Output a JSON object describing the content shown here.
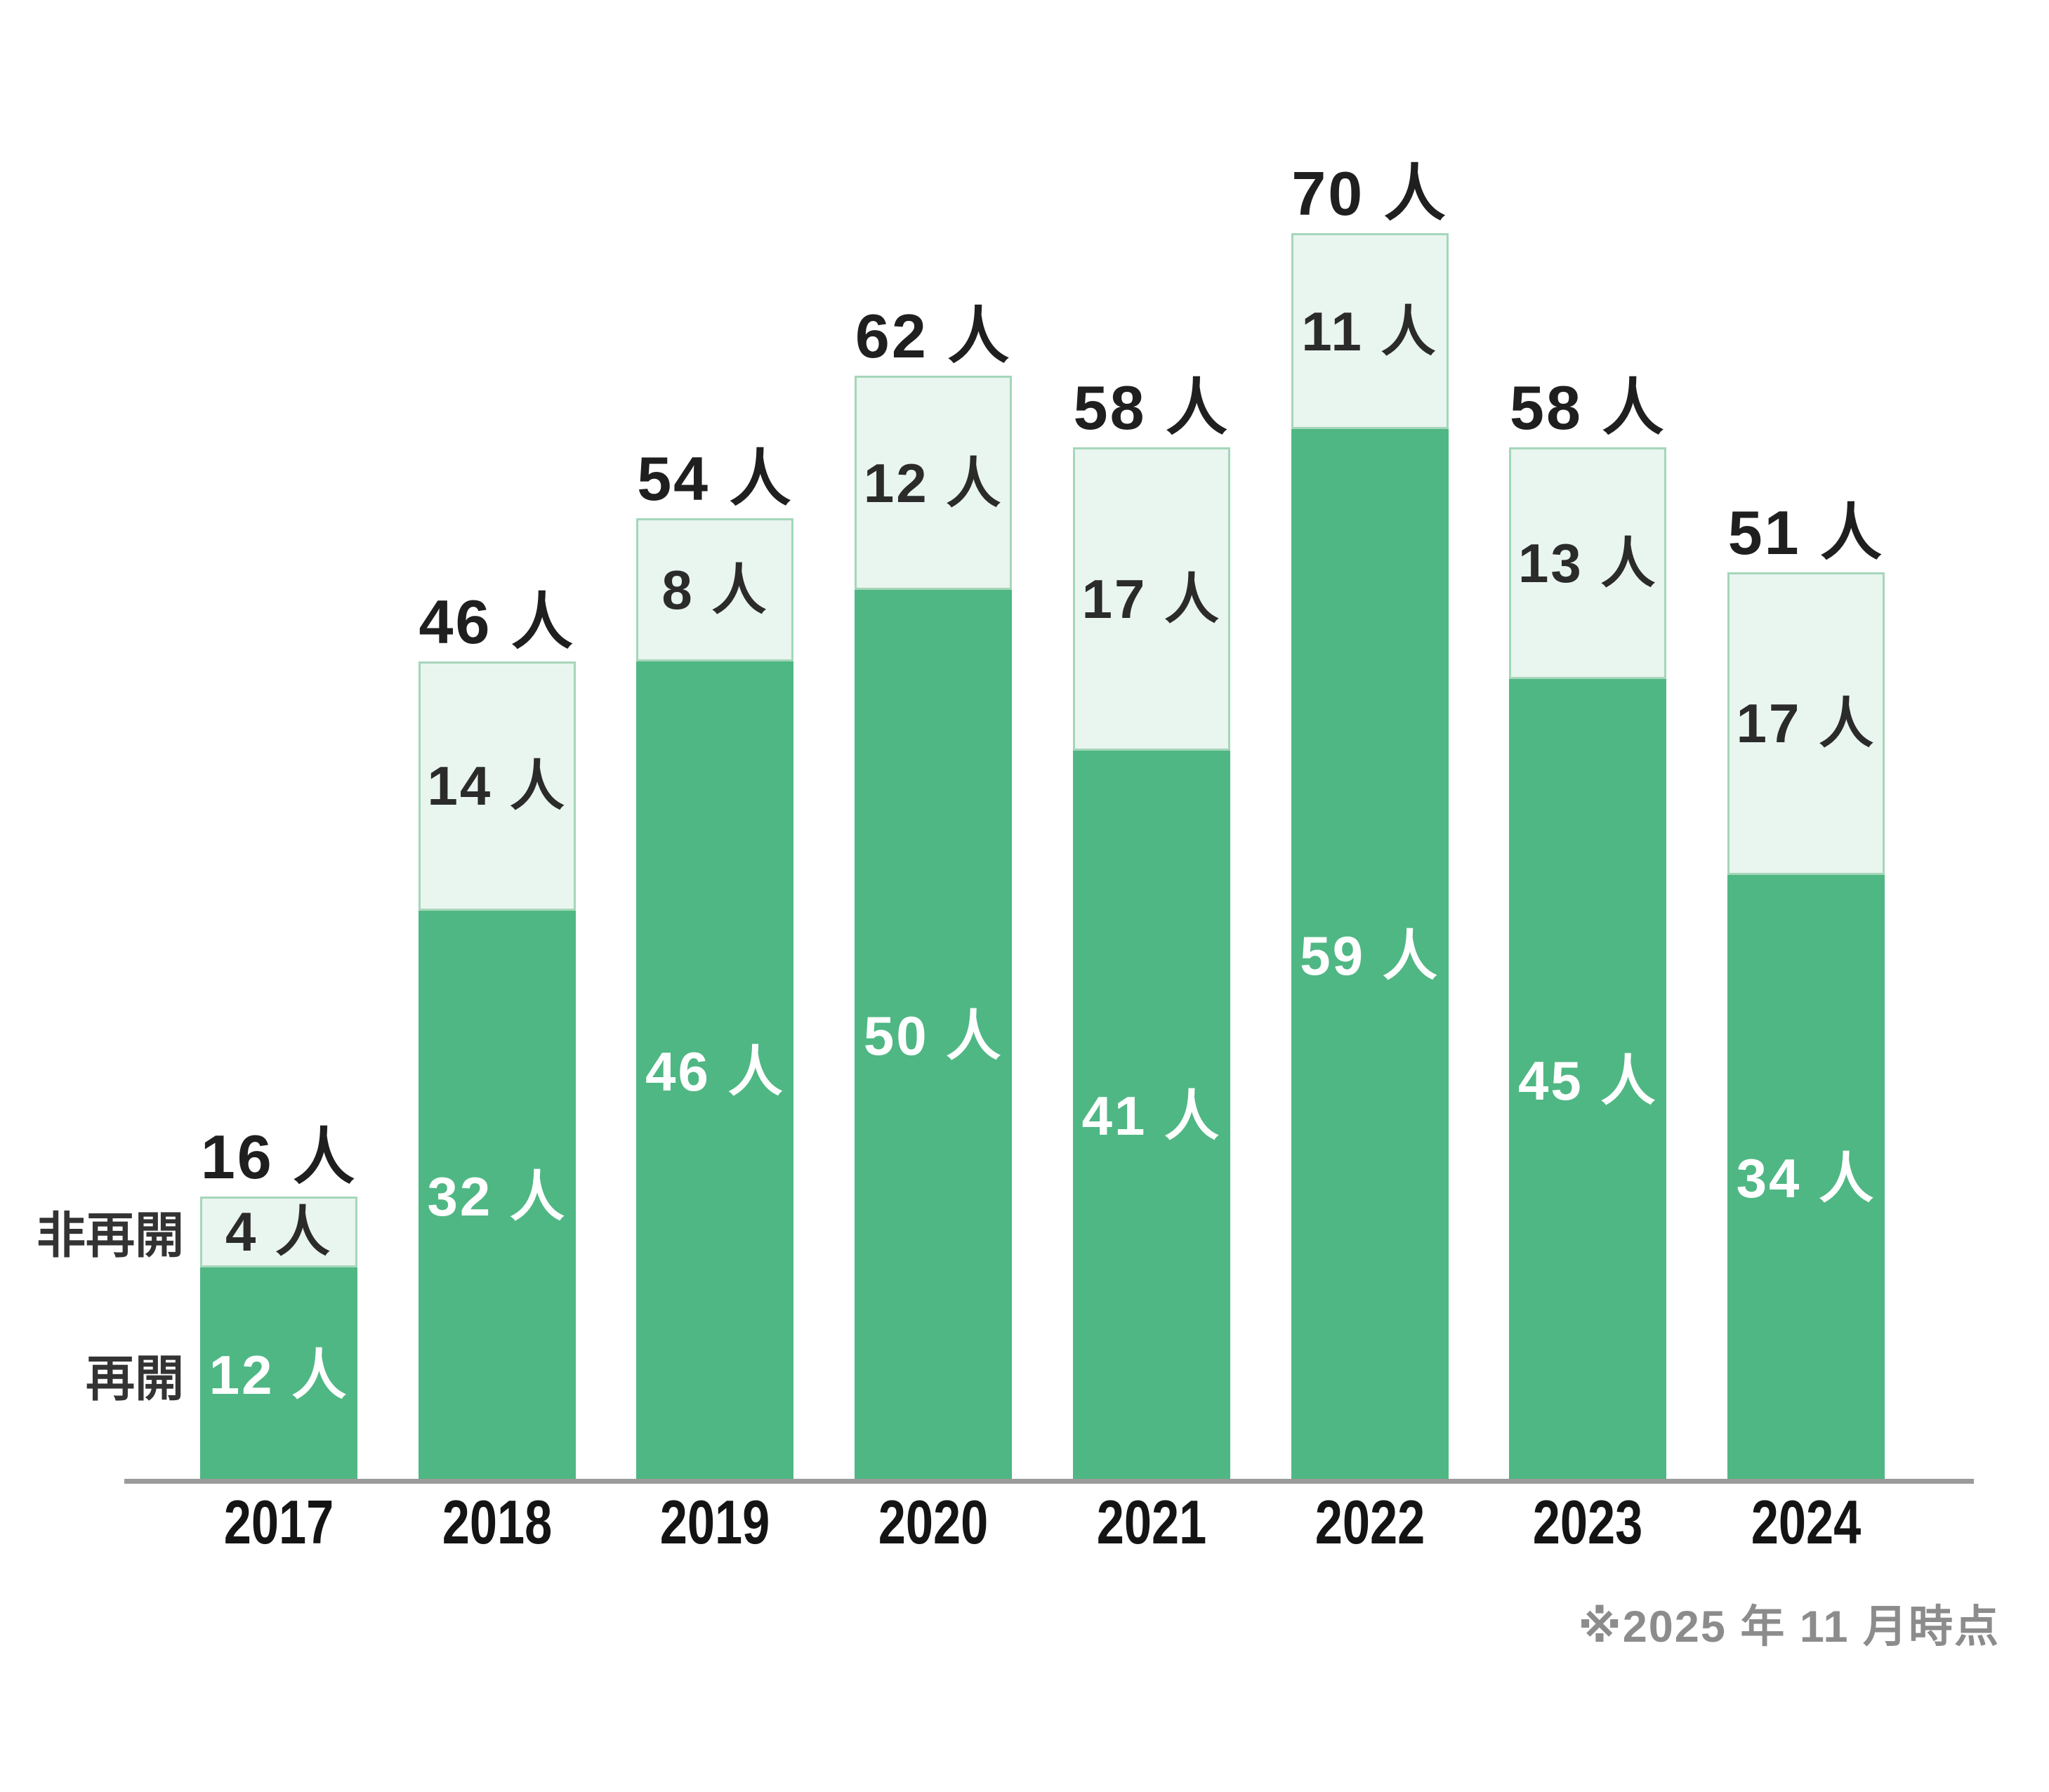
{
  "chart_data": {
    "type": "bar",
    "stacked": true,
    "title": "",
    "categories": [
      "2017",
      "2018",
      "2019",
      "2020",
      "2021",
      "2022",
      "2023",
      "2024"
    ],
    "series": [
      {
        "name": "再開",
        "key": "reopened",
        "color": "#4fb783",
        "values": [
          12,
          32,
          46,
          50,
          41,
          59,
          45,
          34
        ]
      },
      {
        "name": "非再開",
        "key": "non_reopened",
        "color": "#e9f5ef",
        "values": [
          4,
          14,
          8,
          12,
          17,
          11,
          13,
          17
        ]
      }
    ],
    "totals": [
      16,
      46,
      54,
      62,
      58,
      70,
      58,
      51
    ],
    "unit": "人",
    "label_format": "{value} 人",
    "series_labels": {
      "reopened": "再開",
      "non_reopened": "非再開"
    },
    "footnote": "※2025 年 11 月時点",
    "ylim": [
      0,
      70
    ],
    "grid": false,
    "legend_position": "left-of-first-bar",
    "colors": {
      "reopened_fill": "#4fb783",
      "non_reopened_fill": "#e9f5ef",
      "non_reopened_border": "#a5d6ba",
      "axis_line": "#9b9b9b",
      "total_label_text": "#1f1f1f",
      "segment_label_dark": "#2b2b2b",
      "segment_label_light": "#ffffff",
      "footnote_text": "#8c8c8c"
    }
  }
}
